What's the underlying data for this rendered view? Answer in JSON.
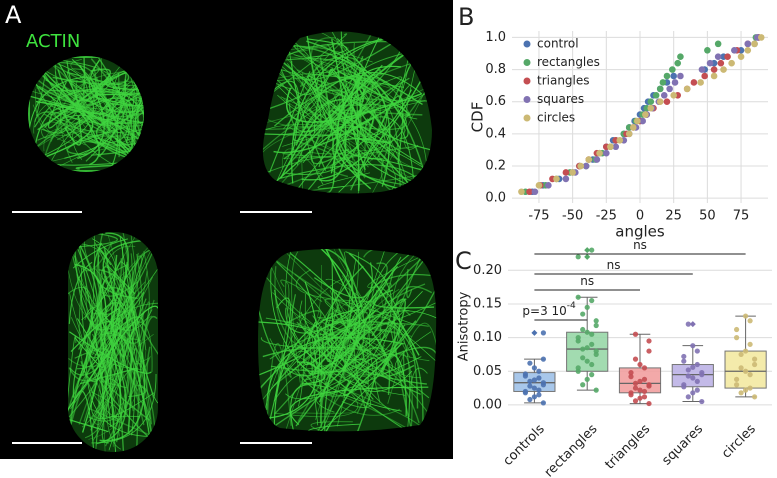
{
  "panel_labels": [
    "A",
    "B",
    "C"
  ],
  "image_label": "ACTIN",
  "chart_data": [
    {
      "type": "scatter",
      "xlabel": "angles",
      "ylabel": "CDF",
      "xlim": [
        -95,
        95
      ],
      "ylim": [
        -0.03,
        1.04
      ],
      "xticks": [
        -75,
        -50,
        -25,
        0,
        25,
        50,
        75
      ],
      "yticks": [
        {
          "value": 0,
          "label": "0.0"
        },
        {
          "value": 0.2,
          "label": "0.2"
        },
        {
          "value": 0.4,
          "label": "0.4"
        },
        {
          "value": 0.6,
          "label": "0.6"
        },
        {
          "value": 0.8,
          "label": "0.8"
        },
        {
          "value": 1,
          "label": "1.0"
        }
      ],
      "grid": true,
      "legend": "upper left",
      "series": [
        {
          "name": "control",
          "color": "#4c72b0",
          "x": [
            -80,
            -72,
            -60,
            -50,
            -45,
            -35,
            -30,
            -25,
            -20,
            -12,
            -8,
            -4,
            0,
            3,
            6,
            10,
            15,
            20,
            25,
            48,
            55,
            62,
            75,
            85,
            88
          ],
          "values": [
            0.04,
            0.08,
            0.12,
            0.16,
            0.2,
            0.24,
            0.28,
            0.32,
            0.36,
            0.4,
            0.44,
            0.48,
            0.52,
            0.56,
            0.6,
            0.64,
            0.68,
            0.72,
            0.76,
            0.8,
            0.84,
            0.88,
            0.92,
            0.96,
            1.0
          ]
        },
        {
          "name": "rectangles",
          "color": "#55a868",
          "x": [
            -85,
            -70,
            -62,
            -52,
            -40,
            -33,
            -28,
            -22,
            -18,
            -12,
            -8,
            -3,
            2,
            5,
            8,
            12,
            15,
            17,
            20,
            24,
            28,
            30,
            50,
            58,
            86
          ],
          "values": [
            0.04,
            0.08,
            0.12,
            0.16,
            0.2,
            0.24,
            0.28,
            0.32,
            0.36,
            0.4,
            0.44,
            0.48,
            0.52,
            0.56,
            0.6,
            0.64,
            0.68,
            0.72,
            0.76,
            0.8,
            0.84,
            0.88,
            0.92,
            0.96,
            1.0
          ]
        },
        {
          "name": "triangles",
          "color": "#c44e52",
          "x": [
            -82,
            -74,
            -65,
            -55,
            -45,
            -38,
            -32,
            -25,
            -18,
            -10,
            -5,
            0,
            5,
            10,
            20,
            28,
            35,
            40,
            48,
            55,
            60,
            65,
            72,
            80,
            88
          ],
          "values": [
            0.04,
            0.08,
            0.12,
            0.16,
            0.2,
            0.24,
            0.28,
            0.32,
            0.36,
            0.4,
            0.44,
            0.48,
            0.52,
            0.56,
            0.6,
            0.64,
            0.68,
            0.72,
            0.76,
            0.8,
            0.84,
            0.88,
            0.92,
            0.96,
            1.0
          ]
        },
        {
          "name": "squares",
          "color": "#8172b2",
          "x": [
            -78,
            -68,
            -55,
            -48,
            -40,
            -32,
            -25,
            -18,
            -12,
            -8,
            -3,
            2,
            5,
            9,
            14,
            18,
            22,
            26,
            30,
            46,
            52,
            58,
            70,
            80,
            87
          ],
          "values": [
            0.04,
            0.08,
            0.12,
            0.16,
            0.2,
            0.24,
            0.28,
            0.32,
            0.36,
            0.4,
            0.44,
            0.48,
            0.52,
            0.56,
            0.6,
            0.64,
            0.68,
            0.72,
            0.76,
            0.8,
            0.84,
            0.88,
            0.92,
            0.96,
            1.0
          ]
        },
        {
          "name": "circles",
          "color": "#ccb974",
          "x": [
            -88,
            -75,
            -62,
            -50,
            -44,
            -38,
            -30,
            -22,
            -15,
            -8,
            -5,
            -2,
            4,
            8,
            15,
            25,
            35,
            45,
            55,
            62,
            68,
            75,
            80,
            85,
            90
          ],
          "values": [
            0.04,
            0.08,
            0.12,
            0.16,
            0.2,
            0.24,
            0.28,
            0.32,
            0.36,
            0.4,
            0.44,
            0.48,
            0.52,
            0.56,
            0.6,
            0.64,
            0.68,
            0.72,
            0.76,
            0.8,
            0.84,
            0.88,
            0.92,
            0.96,
            1.0
          ]
        }
      ]
    },
    {
      "type": "box",
      "ylabel": "Anisotropy",
      "ylim": [
        -0.012,
        0.245
      ],
      "yticks": [
        {
          "value": 0,
          "label": "0.00"
        },
        {
          "value": 0.05,
          "label": "0.05"
        },
        {
          "value": 0.1,
          "label": "0.10"
        },
        {
          "value": 0.15,
          "label": "0.15"
        },
        {
          "value": 0.2,
          "label": "0.20"
        }
      ],
      "grid": true,
      "categories": [
        "controls",
        "rectangles",
        "triangles",
        "squares",
        "circles"
      ],
      "box_colors": [
        "#9fc2e8",
        "#98d8a8",
        "#f2a0a0",
        "#bdb3e6",
        "#f3e9a2"
      ],
      "point_colors": [
        "#4c72b0",
        "#55a868",
        "#c44e52",
        "#8172b2",
        "#ccb974"
      ],
      "boxes": [
        {
          "whislo": 0.003,
          "q1": 0.02,
          "med": 0.033,
          "q3": 0.048,
          "whishi": 0.068,
          "fliers": [
            0.107
          ]
        },
        {
          "whislo": 0.022,
          "q1": 0.05,
          "med": 0.083,
          "q3": 0.108,
          "whishi": 0.16,
          "fliers": [
            0.22,
            0.23
          ]
        },
        {
          "whislo": 0.002,
          "q1": 0.018,
          "med": 0.032,
          "q3": 0.055,
          "whishi": 0.105,
          "fliers": []
        },
        {
          "whislo": 0.005,
          "q1": 0.027,
          "med": 0.045,
          "q3": 0.06,
          "whishi": 0.088,
          "fliers": [
            0.12
          ]
        },
        {
          "whislo": 0.012,
          "q1": 0.025,
          "med": 0.05,
          "q3": 0.08,
          "whishi": 0.132,
          "fliers": []
        }
      ],
      "points": [
        [
          0.003,
          0.008,
          0.012,
          0.015,
          0.018,
          0.02,
          0.022,
          0.025,
          0.028,
          0.03,
          0.033,
          0.035,
          0.037,
          0.04,
          0.043,
          0.046,
          0.05,
          0.055,
          0.062,
          0.068,
          0.107
        ],
        [
          0.022,
          0.03,
          0.038,
          0.045,
          0.05,
          0.055,
          0.06,
          0.065,
          0.07,
          0.075,
          0.08,
          0.083,
          0.085,
          0.09,
          0.095,
          0.1,
          0.105,
          0.108,
          0.112,
          0.118,
          0.125,
          0.135,
          0.145,
          0.155,
          0.16,
          0.22,
          0.23
        ],
        [
          0.002,
          0.006,
          0.01,
          0.012,
          0.015,
          0.018,
          0.02,
          0.022,
          0.025,
          0.028,
          0.03,
          0.032,
          0.035,
          0.038,
          0.042,
          0.048,
          0.055,
          0.06,
          0.068,
          0.08,
          0.095,
          0.105
        ],
        [
          0.005,
          0.012,
          0.018,
          0.022,
          0.027,
          0.03,
          0.035,
          0.04,
          0.043,
          0.045,
          0.048,
          0.052,
          0.056,
          0.06,
          0.065,
          0.072,
          0.08,
          0.088,
          0.12
        ],
        [
          0.012,
          0.018,
          0.022,
          0.025,
          0.03,
          0.038,
          0.045,
          0.05,
          0.055,
          0.06,
          0.068,
          0.075,
          0.08,
          0.09,
          0.1,
          0.112,
          0.125,
          0.132
        ]
      ],
      "annotations": [
        {
          "text": "ns"
        },
        {
          "text": "ns"
        },
        {
          "text": "ns"
        },
        {
          "text": "p=3 10",
          "superscript": "-4"
        }
      ]
    }
  ]
}
